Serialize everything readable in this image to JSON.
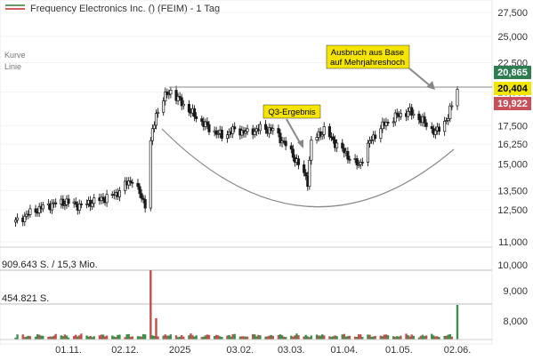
{
  "header": {
    "title": "Frequency Electronics Inc. () (FEIM) - 1 Tag",
    "legend_colors": [
      "#2e7d32",
      "#c62828"
    ]
  },
  "style_labels": [
    "Kurve",
    "Linie"
  ],
  "volume_labels": {
    "first": "909.643 S. / 15,3 Mio.",
    "second": "454.821 S."
  },
  "annotations": {
    "q3": "Q3-Ergebnis",
    "breakout_line1": "Ausbruch aus Base",
    "breakout_line2": "auf Mehrjahreshoch"
  },
  "price_badges": [
    {
      "value": "20,865",
      "price": 20.865,
      "color": "#2e7d52"
    },
    {
      "value": "20,404",
      "price": 20.404,
      "color": "#f2e600"
    },
    {
      "value": "19,922",
      "price": 19.922,
      "color": "#c8505a"
    }
  ],
  "chart_data": {
    "type": "candlestick",
    "title": "Frequency Electronics Inc. () (FEIM) - 1 Tag",
    "x_tick_labels": [
      "01.11.",
      "02.12.",
      "2025",
      "03.02.",
      "03.03.",
      "01.04.",
      "01.05.",
      "02.06."
    ],
    "y_scale": "log",
    "y_tick_labels": [
      "27,500",
      "25,000",
      "22,500",
      "20,000",
      "17,500",
      "16,250",
      "15,000",
      "13,500",
      "12,500",
      "11,000",
      "10,000",
      "9,000",
      "8,000"
    ],
    "y_ticks": [
      27.5,
      25.0,
      22.5,
      20.0,
      17.5,
      16.25,
      15.0,
      13.5,
      12.5,
      11.0,
      10.0,
      9.0,
      8.0
    ],
    "resistance_level": 20.404,
    "price_series": [
      {
        "x": "2024-10-03",
        "close": 11.9
      },
      {
        "x": "2024-10-10",
        "close": 12.3
      },
      {
        "x": "2024-10-17",
        "close": 12.6
      },
      {
        "x": "2024-10-24",
        "close": 12.8
      },
      {
        "x": "2024-10-31",
        "close": 12.9
      },
      {
        "x": "2024-11-07",
        "close": 12.7
      },
      {
        "x": "2024-11-14",
        "close": 12.9
      },
      {
        "x": "2024-11-21",
        "close": 13.1
      },
      {
        "x": "2024-11-27",
        "close": 13.3
      },
      {
        "x": "2024-12-02",
        "close": 13.8
      },
      {
        "x": "2024-12-06",
        "close": 14.1
      },
      {
        "x": "2024-12-10",
        "close": 13.3
      },
      {
        "x": "2024-12-13",
        "close": 12.8
      },
      {
        "x": "2024-12-16",
        "close": 16.4
      },
      {
        "x": "2024-12-19",
        "close": 18.3
      },
      {
        "x": "2024-12-23",
        "close": 19.5
      },
      {
        "x": "2024-12-27",
        "close": 20.1
      },
      {
        "x": "2025-01-03",
        "close": 19.0
      },
      {
        "x": "2025-01-10",
        "close": 18.1
      },
      {
        "x": "2025-01-17",
        "close": 17.3
      },
      {
        "x": "2025-01-24",
        "close": 16.8
      },
      {
        "x": "2025-01-31",
        "close": 17.2
      },
      {
        "x": "2025-02-07",
        "close": 17.0
      },
      {
        "x": "2025-02-14",
        "close": 17.3
      },
      {
        "x": "2025-02-21",
        "close": 17.2
      },
      {
        "x": "2025-02-28",
        "close": 16.2
      },
      {
        "x": "2025-03-07",
        "close": 15.0
      },
      {
        "x": "2025-03-12",
        "close": 14.0
      },
      {
        "x": "2025-03-14",
        "close": 16.4
      },
      {
        "x": "2025-03-21",
        "close": 17.2
      },
      {
        "x": "2025-03-28",
        "close": 16.2
      },
      {
        "x": "2025-04-04",
        "close": 15.4
      },
      {
        "x": "2025-04-09",
        "close": 14.9
      },
      {
        "x": "2025-04-16",
        "close": 16.6
      },
      {
        "x": "2025-04-23",
        "close": 17.6
      },
      {
        "x": "2025-04-30",
        "close": 18.2
      },
      {
        "x": "2025-05-07",
        "close": 18.5
      },
      {
        "x": "2025-05-14",
        "close": 17.8
      },
      {
        "x": "2025-05-21",
        "close": 17.0
      },
      {
        "x": "2025-05-28",
        "close": 18.1
      },
      {
        "x": "2025-06-02",
        "close": 20.4
      }
    ],
    "volume": [
      {
        "x": "2024-12-16",
        "shares": 909643
      },
      {
        "x": "2024-12-19",
        "shares": 280000
      },
      {
        "x": "2025-06-02",
        "shares": 454821
      }
    ]
  }
}
